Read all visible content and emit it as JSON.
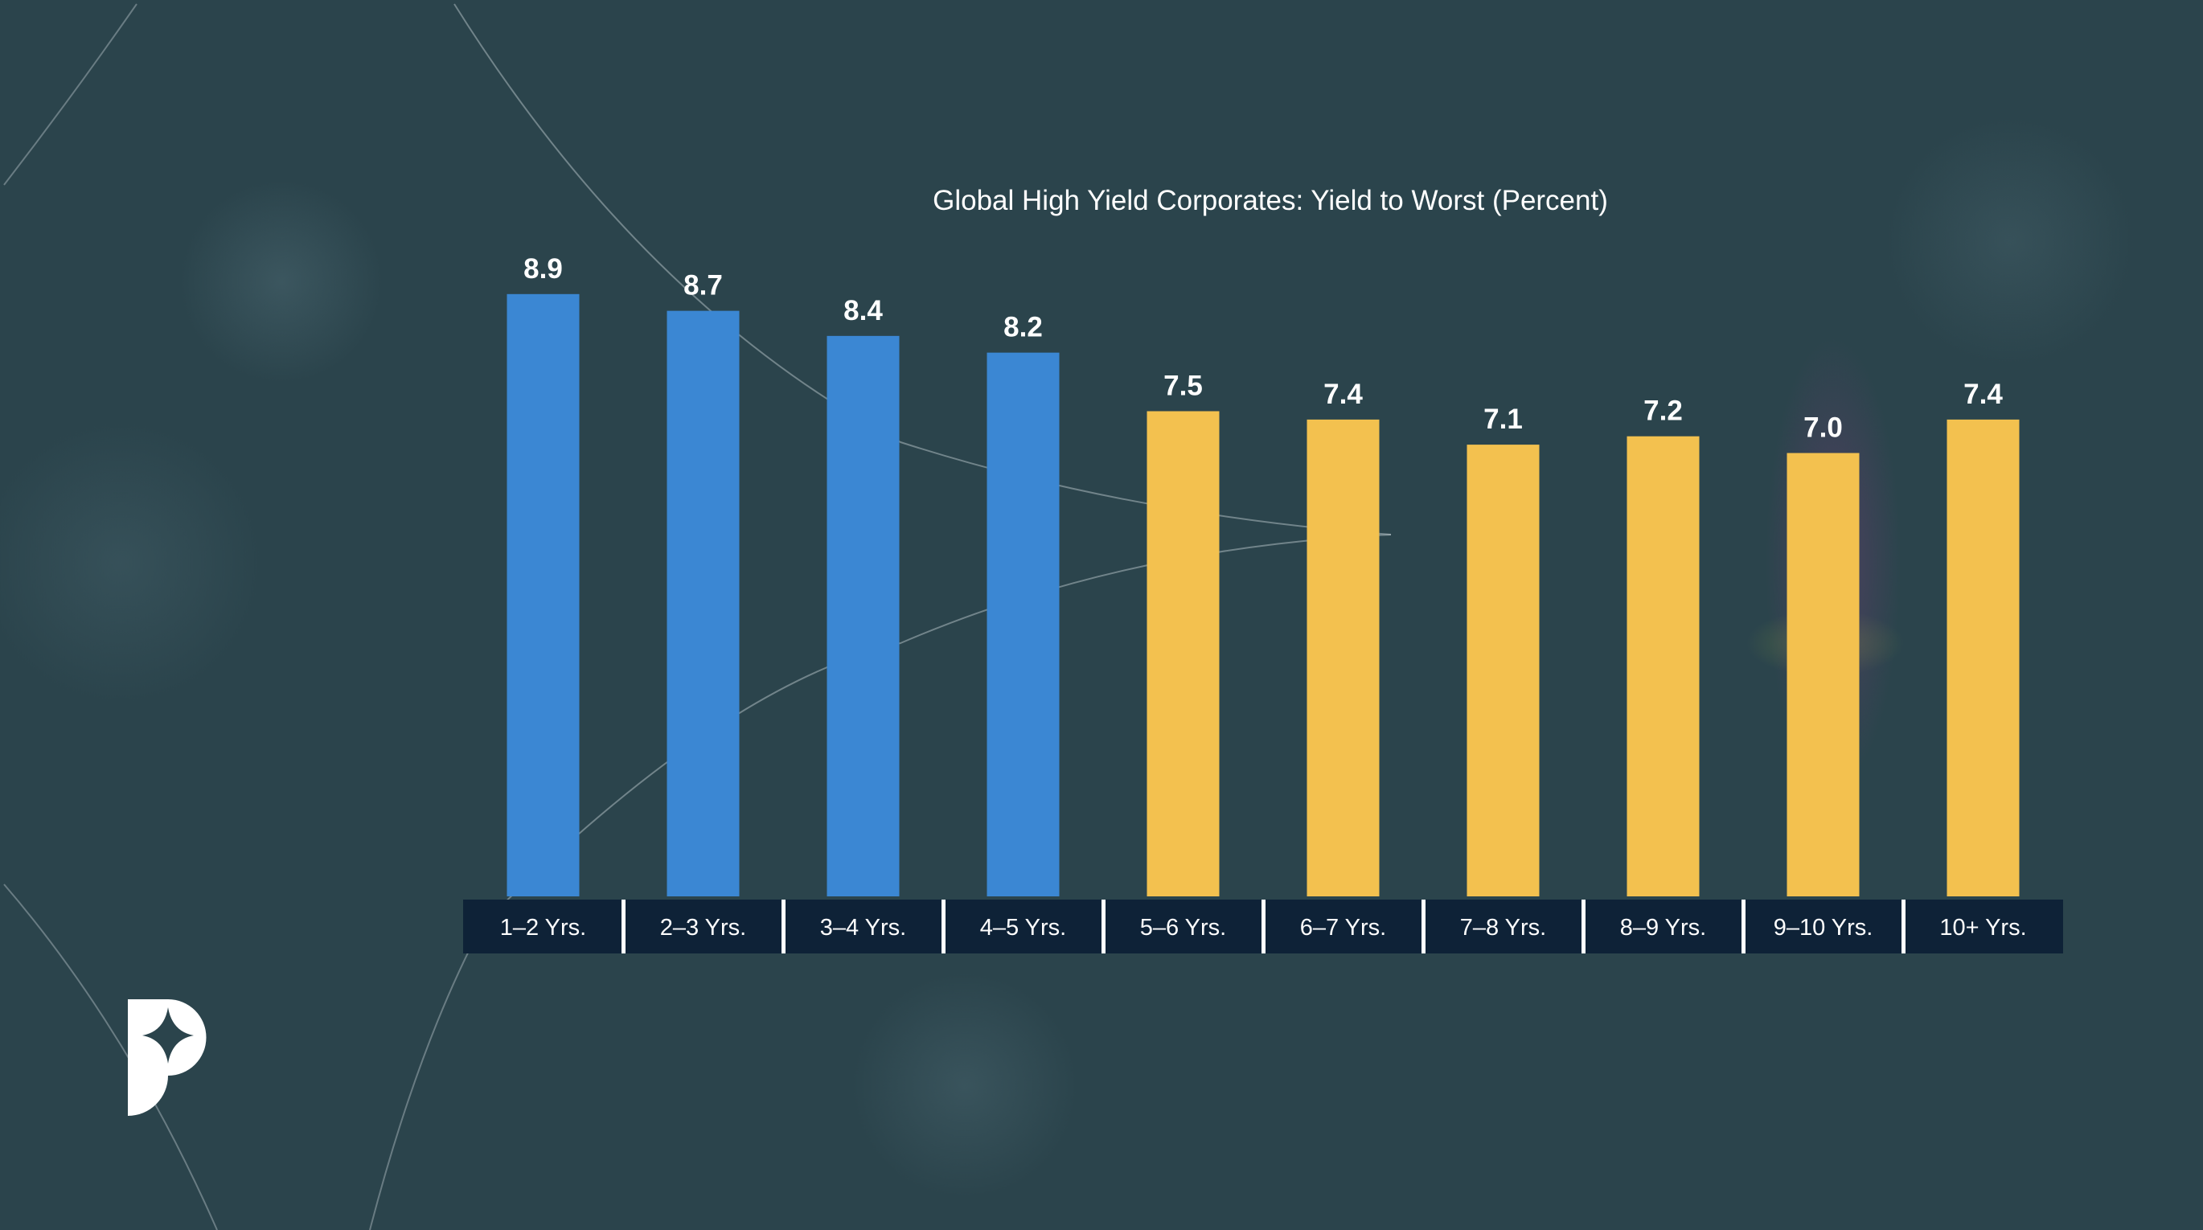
{
  "chart_data": {
    "type": "bar",
    "title": "Global High Yield Corporates: Yield to Worst (Percent)",
    "xlabel": "",
    "ylabel": "",
    "ylim": [
      1.7,
      9.1
    ],
    "grid": false,
    "categories": [
      "1–2 Yrs.",
      "2–3 Yrs.",
      "3–4 Yrs.",
      "4–5 Yrs.",
      "5–6 Yrs.",
      "6–7 Yrs.",
      "7–8 Yrs.",
      "8–9 Yrs.",
      "9–10 Yrs.",
      "10+ Yrs."
    ],
    "values": [
      8.9,
      8.7,
      8.4,
      8.2,
      7.5,
      7.4,
      7.1,
      7.2,
      7.0,
      7.4
    ],
    "value_labels": [
      "8.9",
      "8.7",
      "8.4",
      "8.2",
      "7.5",
      "7.4",
      "7.1",
      "7.2",
      "7.0",
      "7.4"
    ],
    "bar_colors": [
      "#3b87d3",
      "#3b87d3",
      "#3b87d3",
      "#3b87d3",
      "#f3c14f",
      "#f3c14f",
      "#f3c14f",
      "#f3c14f",
      "#f3c14f",
      "#f3c14f"
    ],
    "axis_label_bg": "#0e2237"
  }
}
